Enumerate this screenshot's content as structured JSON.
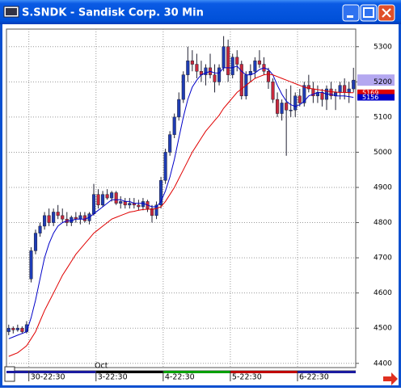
{
  "chart_data": {
    "type": "candlestick",
    "title": "S.SNDK - Sandisk Corp. 30 Min",
    "month_label": "Oct",
    "categories": [
      null,
      null,
      null,
      null,
      null,
      "30-22:30",
      null,
      null,
      null,
      null,
      null,
      null,
      null,
      null,
      null,
      null,
      null,
      null,
      null,
      null,
      "3-22:30",
      null,
      null,
      null,
      null,
      null,
      null,
      null,
      null,
      null,
      null,
      null,
      null,
      null,
      null,
      "4-22:30",
      null,
      null,
      null,
      null,
      null,
      null,
      null,
      null,
      null,
      null,
      null,
      null,
      null,
      null,
      "5-22:30",
      null,
      null,
      null,
      null,
      null,
      null,
      null,
      null,
      null,
      null,
      null,
      null,
      null,
      null,
      "6-22:30",
      null,
      null,
      null,
      null,
      null,
      null,
      null,
      null,
      null,
      null,
      null,
      null
    ],
    "open": [
      4490,
      4500,
      4495,
      4500,
      4490,
      4640,
      4720,
      4770,
      4790,
      4820,
      4800,
      4830,
      4820,
      4810,
      4800,
      4815,
      4810,
      4820,
      4805,
      4825,
      4880,
      4850,
      4880,
      4870,
      4885,
      4855,
      4860,
      4850,
      4855,
      4850,
      4845,
      4860,
      4840,
      4820,
      4850,
      4920,
      5000,
      5050,
      5100,
      5150,
      5220,
      5260,
      5250,
      5230,
      5220,
      5240,
      5220,
      5200,
      5240,
      5300,
      5220,
      5270,
      5250,
      5160,
      5220,
      5230,
      5260,
      5250,
      5230,
      5200,
      5150,
      5110,
      5140,
      5120,
      5120,
      5160,
      5140,
      5190,
      5180,
      5160,
      5170,
      5150,
      5180,
      5160,
      5170,
      5190,
      5170,
      5180
    ],
    "high": [
      4510,
      4505,
      4510,
      4505,
      4520,
      4730,
      4780,
      4800,
      4830,
      4840,
      4840,
      4850,
      4840,
      4830,
      4820,
      4830,
      4830,
      4830,
      4830,
      4910,
      4895,
      4890,
      4895,
      4890,
      4890,
      4875,
      4870,
      4870,
      4870,
      4865,
      4870,
      4865,
      4850,
      4860,
      4930,
      5010,
      5060,
      5110,
      5170,
      5230,
      5300,
      5290,
      5280,
      5260,
      5250,
      5280,
      5250,
      5250,
      5330,
      5320,
      5280,
      5290,
      5260,
      5230,
      5250,
      5270,
      5290,
      5270,
      5240,
      5210,
      5170,
      5150,
      5180,
      5190,
      5170,
      5180,
      5200,
      5220,
      5200,
      5190,
      5180,
      5190,
      5200,
      5180,
      5200,
      5210,
      5200,
      5240
    ],
    "low": [
      4480,
      4485,
      4490,
      4485,
      4485,
      4630,
      4710,
      4760,
      4780,
      4790,
      4790,
      4810,
      4800,
      4790,
      4790,
      4800,
      4795,
      4800,
      4795,
      4820,
      4840,
      4845,
      4865,
      4860,
      4850,
      4840,
      4840,
      4840,
      4840,
      4835,
      4835,
      4830,
      4800,
      4810,
      4840,
      4910,
      4990,
      5040,
      5090,
      5140,
      5200,
      5230,
      5210,
      5200,
      5190,
      5210,
      5170,
      5190,
      5230,
      5200,
      5210,
      5230,
      5150,
      5150,
      5200,
      5210,
      5240,
      5220,
      5180,
      5140,
      5100,
      5090,
      4990,
      5100,
      5100,
      5130,
      5130,
      5170,
      5140,
      5140,
      5130,
      5120,
      5150,
      5120,
      5150,
      5150,
      5140,
      5170
    ],
    "close": [
      4500,
      4495,
      4500,
      4490,
      4510,
      4720,
      4770,
      4790,
      4820,
      4800,
      4830,
      4820,
      4810,
      4800,
      4815,
      4810,
      4820,
      4805,
      4825,
      4880,
      4850,
      4880,
      4870,
      4885,
      4855,
      4860,
      4850,
      4855,
      4850,
      4845,
      4860,
      4840,
      4820,
      4850,
      4920,
      5000,
      5050,
      5100,
      5150,
      5220,
      5260,
      5250,
      5230,
      5220,
      5240,
      5220,
      5200,
      5240,
      5300,
      5220,
      5270,
      5250,
      5160,
      5220,
      5230,
      5260,
      5250,
      5230,
      5200,
      5150,
      5110,
      5140,
      5120,
      5120,
      5160,
      5140,
      5190,
      5180,
      5160,
      5170,
      5150,
      5180,
      5160,
      5170,
      5190,
      5170,
      5180,
      5205
    ],
    "up_color": "#1e3cb4",
    "down_color": "#c8283c",
    "moving_averages": [
      {
        "color": "#0000c8",
        "values": [
          4470,
          4475,
          4480,
          4485,
          4490,
          4530,
          4580,
          4640,
          4700,
          4740,
          4770,
          4790,
          4800,
          4805,
          4805,
          4810,
          4810,
          4810,
          4815,
          4825,
          4835,
          4845,
          4855,
          4865,
          4865,
          4865,
          4860,
          4860,
          4855,
          4855,
          4855,
          4850,
          4845,
          4845,
          4860,
          4890,
          4930,
          4980,
          5040,
          5100,
          5150,
          5185,
          5205,
          5220,
          5225,
          5230,
          5225,
          5225,
          5240,
          5240,
          5240,
          5245,
          5230,
          5220,
          5220,
          5225,
          5235,
          5240,
          5235,
          5220,
          5190,
          5165,
          5145,
          5135,
          5130,
          5135,
          5145,
          5160,
          5165,
          5170,
          5170,
          5165,
          5165,
          5160,
          5160,
          5160,
          5158,
          5156
        ]
      },
      {
        "color": "#e00000",
        "values": [
          4420,
          4425,
          4430,
          4440,
          4450,
          4470,
          4490,
          4520,
          4550,
          4575,
          4600,
          4625,
          4650,
          4670,
          4690,
          4710,
          4725,
          4740,
          4755,
          4770,
          4780,
          4790,
          4800,
          4810,
          4815,
          4820,
          4825,
          4830,
          4832,
          4835,
          4837,
          4838,
          4838,
          4840,
          4845,
          4860,
          4880,
          4900,
          4925,
          4950,
          4975,
          5000,
          5020,
          5040,
          5060,
          5075,
          5090,
          5105,
          5125,
          5140,
          5155,
          5170,
          5180,
          5190,
          5200,
          5210,
          5215,
          5220,
          5222,
          5220,
          5215,
          5210,
          5205,
          5200,
          5195,
          5190,
          5185,
          5182,
          5180,
          5178,
          5176,
          5174,
          5172,
          5171,
          5170,
          5170,
          5169,
          5169
        ]
      }
    ],
    "ylim": [
      4388,
      5350
    ],
    "yticks": [
      4400,
      4500,
      4600,
      4700,
      4800,
      4900,
      5000,
      5100,
      5200,
      5300
    ],
    "grid": true
  }
}
